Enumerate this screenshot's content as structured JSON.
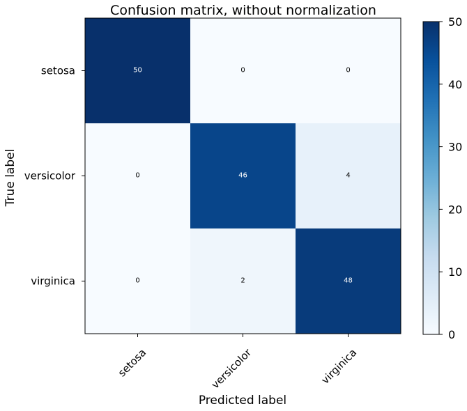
{
  "chart_data": {
    "type": "heatmap",
    "title": "Confusion matrix, without normalization",
    "xlabel": "Predicted label",
    "ylabel": "True label",
    "x_categories": [
      "setosa",
      "versicolor",
      "virginica"
    ],
    "y_categories": [
      "setosa",
      "versicolor",
      "virginica"
    ],
    "values": [
      [
        50,
        0,
        0
      ],
      [
        0,
        46,
        4
      ],
      [
        0,
        2,
        48
      ]
    ],
    "colorbar": {
      "range": [
        0,
        50
      ],
      "ticks": [
        0,
        10,
        20,
        30,
        40,
        50
      ],
      "colormap": "Blues"
    },
    "grid": false
  },
  "colors": {
    "low": "#f7fbff",
    "high": "#08306b"
  }
}
